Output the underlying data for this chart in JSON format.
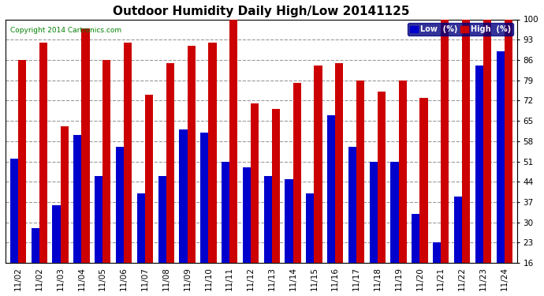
{
  "title": "Outdoor Humidity Daily High/Low 20141125",
  "copyright": "Copyright 2014 Cartronics.com",
  "labels": [
    "11/02",
    "11/02",
    "11/03",
    "11/04",
    "11/05",
    "11/06",
    "11/07",
    "11/08",
    "11/09",
    "11/10",
    "11/11",
    "11/12",
    "11/13",
    "11/14",
    "11/15",
    "11/16",
    "11/17",
    "11/18",
    "11/19",
    "11/20",
    "11/21",
    "11/22",
    "11/23",
    "11/24"
  ],
  "low_values": [
    52,
    28,
    36,
    60,
    46,
    56,
    40,
    46,
    62,
    61,
    51,
    49,
    46,
    45,
    40,
    67,
    56,
    51,
    51,
    33,
    23,
    39,
    84,
    89
  ],
  "high_values": [
    86,
    92,
    63,
    97,
    86,
    92,
    74,
    85,
    91,
    92,
    100,
    71,
    69,
    78,
    84,
    85,
    79,
    75,
    79,
    73,
    100,
    100,
    100,
    100
  ],
  "ymin": 16,
  "ymax": 100,
  "yticks": [
    16,
    23,
    30,
    37,
    44,
    51,
    58,
    65,
    72,
    79,
    86,
    93,
    100
  ],
  "low_color": "#0000cc",
  "high_color": "#cc0000",
  "bg_color": "#ffffff",
  "grid_color": "#999999",
  "title_fontsize": 11,
  "tick_fontsize": 7.5,
  "bar_width": 0.38,
  "legend_low_label": "Low  (%)",
  "legend_high_label": "High  (%)"
}
